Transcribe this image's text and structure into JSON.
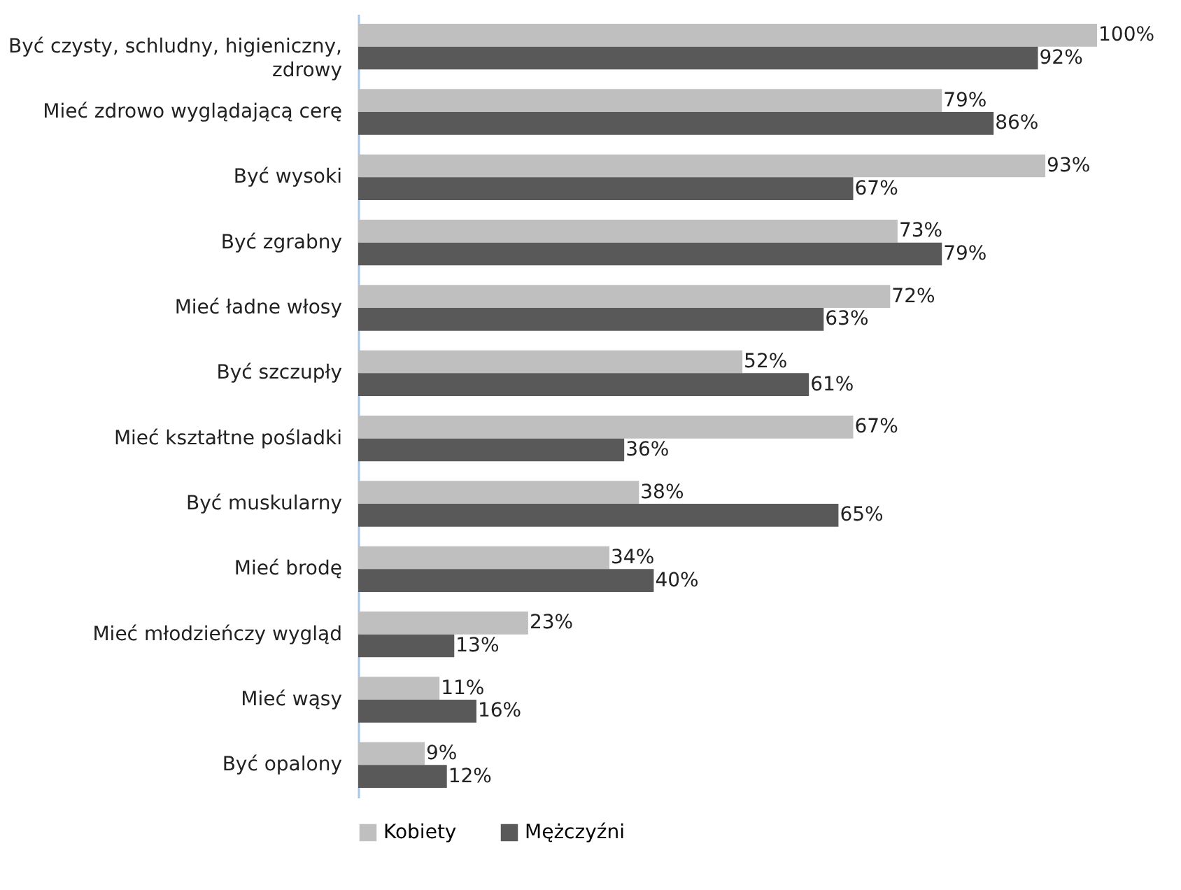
{
  "chart_data": {
    "type": "bar",
    "orientation": "horizontal",
    "legend": "bottom",
    "categories": [
      "Być czysty, schludny, higieniczny, zdrowy",
      "Mieć zdrowo wyglądającą cerę",
      "Być wysoki",
      "Być zgrabny",
      "Mieć ładne włosy",
      "Być szczupły",
      "Mieć kształtne pośladki",
      "Być muskularny",
      "Mieć brodę",
      "Mieć młodzieńczy wygląd",
      "Mieć wąsy",
      "Być opalony"
    ],
    "series": [
      {
        "name": "Kobiety",
        "color": "#bfbfbf",
        "values": [
          100,
          79,
          93,
          73,
          72,
          52,
          67,
          38,
          34,
          23,
          11,
          9
        ],
        "value_labels": [
          "100%",
          "79%",
          "93%",
          "73%",
          "72%",
          "52%",
          "67%",
          "38%",
          "34%",
          "23%",
          "11%",
          "9%"
        ]
      },
      {
        "name": "Mężczyźni",
        "color": "#595959",
        "values": [
          92,
          86,
          67,
          79,
          63,
          61,
          36,
          65,
          40,
          13,
          16,
          12
        ],
        "value_labels": [
          "92%",
          "86%",
          "67%",
          "79%",
          "63%",
          "61%",
          "36%",
          "65%",
          "40%",
          "13%",
          "16%",
          "12%"
        ]
      }
    ]
  }
}
